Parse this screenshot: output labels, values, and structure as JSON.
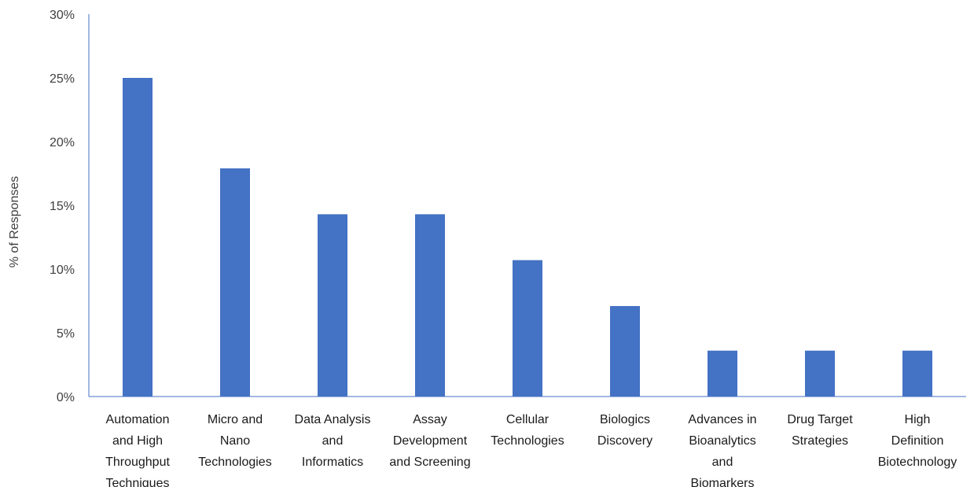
{
  "chart_data": {
    "type": "bar",
    "title": "",
    "xlabel": "",
    "ylabel": "% of Responses",
    "ylim": [
      0,
      30
    ],
    "yticks": [
      0,
      5,
      10,
      15,
      20,
      25,
      30
    ],
    "ytick_labels": [
      "0%",
      "5%",
      "10%",
      "15%",
      "20%",
      "25%",
      "30%"
    ],
    "grid": false,
    "bar_color": "#4472C4",
    "axis_color": "#4472C4",
    "categories": [
      [
        "Automation",
        "and High",
        "Throughput",
        "Techniques"
      ],
      [
        "Micro and",
        "Nano",
        "Technologies"
      ],
      [
        "Data Analysis",
        "and",
        "Informatics"
      ],
      [
        "Assay",
        "Development",
        "and Screening"
      ],
      [
        "Cellular",
        "Technologies"
      ],
      [
        "Biologics",
        "Discovery"
      ],
      [
        "Advances in",
        "Bioanalytics",
        "and",
        "Biomarkers"
      ],
      [
        "Drug Target",
        "Strategies"
      ],
      [
        "High",
        "Definition",
        "Biotechnology"
      ]
    ],
    "values": [
      25.0,
      17.9,
      14.3,
      14.3,
      10.7,
      7.1,
      3.6,
      3.6,
      3.6
    ]
  }
}
